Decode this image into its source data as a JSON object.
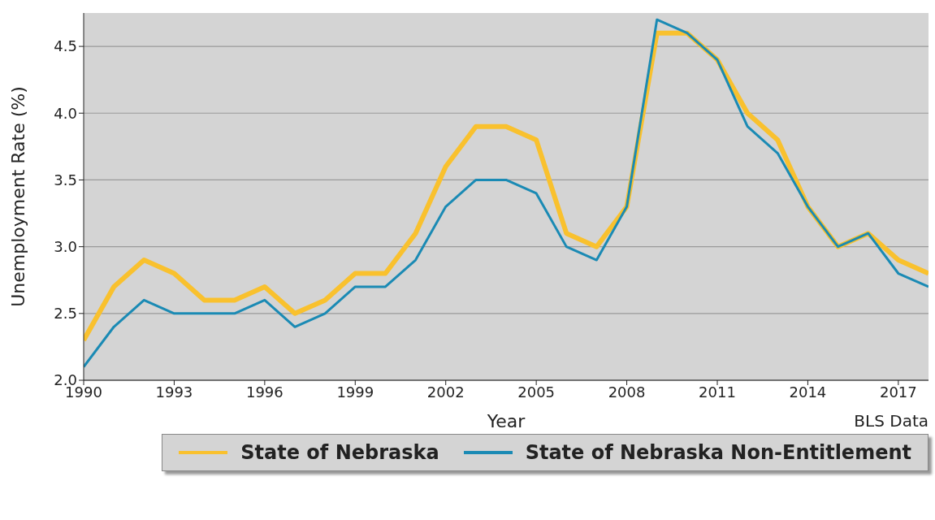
{
  "chart_data": {
    "type": "line",
    "xlabel": "Year",
    "ylabel": "Unemployment Rate (%)",
    "annotations": [
      "BLS Data"
    ],
    "x": [
      1990,
      1991,
      1992,
      1993,
      1994,
      1995,
      1996,
      1997,
      1998,
      1999,
      2000,
      2001,
      2002,
      2003,
      2004,
      2005,
      2006,
      2007,
      2008,
      2009,
      2010,
      2011,
      2012,
      2013,
      2014,
      2015,
      2016,
      2017,
      2018
    ],
    "series": [
      {
        "name": "State of Nebraska",
        "color": "#f9c12e",
        "values": [
          2.3,
          2.7,
          2.9,
          2.8,
          2.6,
          2.6,
          2.7,
          2.5,
          2.6,
          2.8,
          2.8,
          3.1,
          3.6,
          3.9,
          3.9,
          3.8,
          3.1,
          3.0,
          3.3,
          4.6,
          4.6,
          4.4,
          4.0,
          3.8,
          3.3,
          3.0,
          3.1,
          2.9,
          2.8
        ]
      },
      {
        "name": "State of Nebraska Non-Entitlement",
        "color": "#1a8ab4",
        "values": [
          2.1,
          2.4,
          2.6,
          2.5,
          2.5,
          2.5,
          2.6,
          2.4,
          2.5,
          2.7,
          2.7,
          2.9,
          3.3,
          3.5,
          3.5,
          3.4,
          3.0,
          2.9,
          3.3,
          4.7,
          4.6,
          4.4,
          3.9,
          3.7,
          3.3,
          3.0,
          3.1,
          2.8,
          2.7
        ]
      }
    ],
    "xlim": [
      1990,
      2018
    ],
    "xticks": [
      1990,
      1993,
      1996,
      1999,
      2002,
      2005,
      2008,
      2011,
      2014,
      2017
    ],
    "ylim": [
      2.0,
      4.75
    ],
    "yticks": [
      {
        "value": 2,
        "label": "2.0"
      },
      2.5,
      {
        "value": 3,
        "label": "3.0"
      },
      3.5,
      {
        "value": 4,
        "label": "4.0"
      },
      4.5
    ],
    "grid": "y",
    "legend": "bottom right",
    "marker": "none",
    "line_style": "solid"
  }
}
